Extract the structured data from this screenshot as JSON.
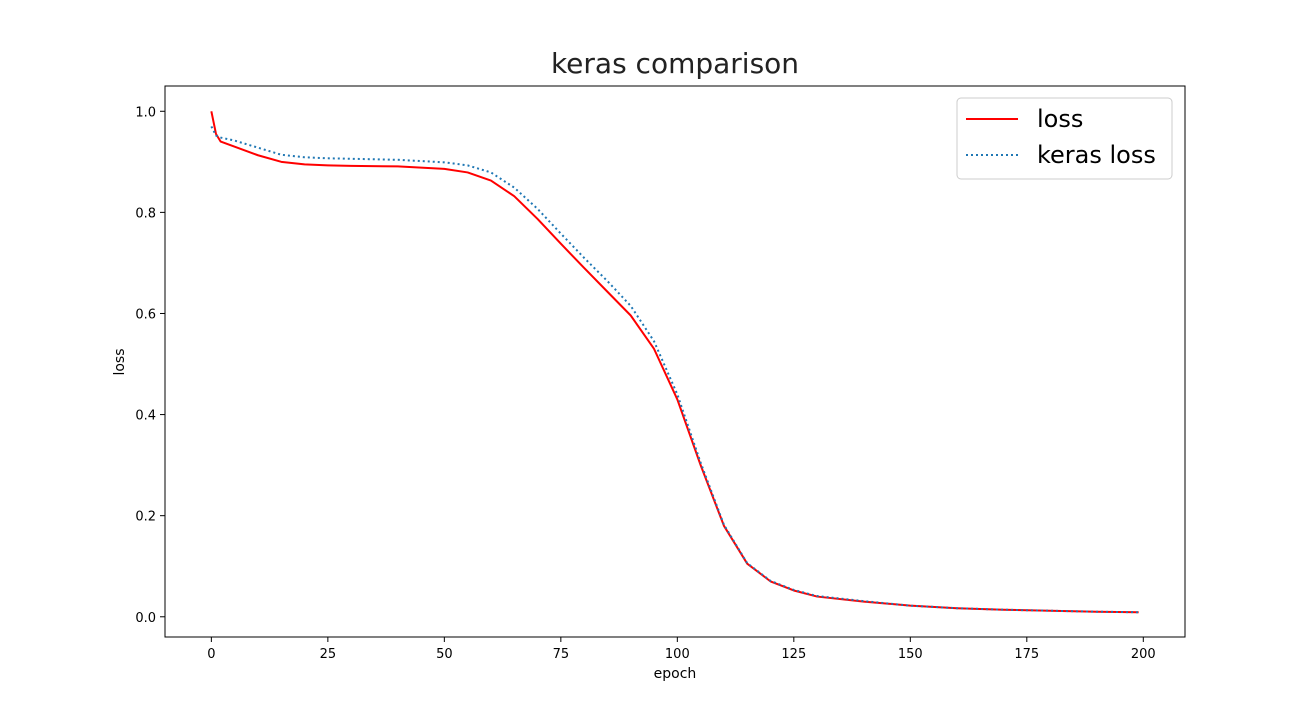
{
  "chart_data": {
    "type": "line",
    "title": "keras comparison",
    "xlabel": "epoch",
    "ylabel": "loss",
    "xlim": [
      -9.95,
      208.95
    ],
    "ylim": [
      -0.04,
      1.05
    ],
    "xticks": [
      0,
      25,
      50,
      75,
      100,
      125,
      150,
      175,
      200
    ],
    "yticks": [
      0.0,
      0.2,
      0.4,
      0.6,
      0.8,
      1.0
    ],
    "xtick_labels": [
      "0",
      "25",
      "50",
      "75",
      "100",
      "125",
      "150",
      "175",
      "200"
    ],
    "ytick_labels": [
      "0.0",
      "0.2",
      "0.4",
      "0.6",
      "0.8",
      "1.0"
    ],
    "grid": false,
    "legend_position": "top-right",
    "series": [
      {
        "name": "loss",
        "color": "#ff0000",
        "style": "solid",
        "x": [
          0,
          1,
          2,
          5,
          10,
          15,
          20,
          25,
          30,
          40,
          50,
          55,
          60,
          65,
          70,
          75,
          80,
          85,
          90,
          95,
          100,
          105,
          110,
          115,
          120,
          125,
          130,
          140,
          150,
          160,
          170,
          180,
          190,
          199
        ],
        "y": [
          1.0,
          0.955,
          0.94,
          0.93,
          0.913,
          0.9,
          0.895,
          0.893,
          0.892,
          0.891,
          0.886,
          0.879,
          0.863,
          0.832,
          0.787,
          0.738,
          0.69,
          0.643,
          0.596,
          0.53,
          0.43,
          0.3,
          0.18,
          0.105,
          0.07,
          0.052,
          0.04,
          0.03,
          0.022,
          0.017,
          0.014,
          0.012,
          0.01,
          0.009
        ]
      },
      {
        "name": "keras loss",
        "color": "#1f77b4",
        "style": "dotted",
        "x": [
          0,
          1,
          2,
          5,
          10,
          15,
          20,
          25,
          30,
          40,
          50,
          55,
          60,
          65,
          70,
          75,
          80,
          85,
          90,
          95,
          100,
          105,
          110,
          115,
          120,
          125,
          130,
          140,
          150,
          160,
          170,
          180,
          190,
          199
        ],
        "y": [
          0.97,
          0.952,
          0.948,
          0.942,
          0.928,
          0.914,
          0.909,
          0.907,
          0.906,
          0.904,
          0.899,
          0.893,
          0.879,
          0.849,
          0.807,
          0.758,
          0.71,
          0.664,
          0.615,
          0.545,
          0.44,
          0.305,
          0.182,
          0.106,
          0.071,
          0.053,
          0.041,
          0.031,
          0.022,
          0.017,
          0.014,
          0.012,
          0.01,
          0.009
        ]
      }
    ]
  }
}
